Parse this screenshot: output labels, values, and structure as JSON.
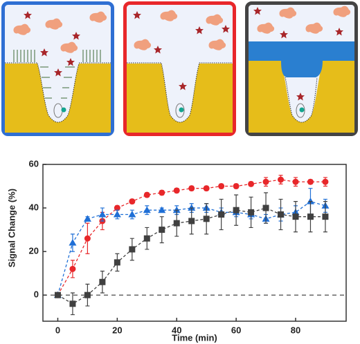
{
  "chart_data": {
    "type": "line",
    "x_label": "Time (min)",
    "y_label": "Signal Change (%)",
    "x": [
      0,
      5,
      10,
      15,
      20,
      25,
      30,
      35,
      40,
      45,
      50,
      55,
      60,
      65,
      70,
      75,
      80,
      85,
      90
    ],
    "series": [
      {
        "color": "#e8272a",
        "marker": "circle",
        "values": [
          0,
          12,
          26,
          34,
          40,
          43,
          46,
          47,
          48,
          49,
          49,
          50,
          50,
          51,
          52,
          53,
          52,
          52,
          52
        ],
        "errors": [
          1,
          4,
          7,
          4,
          1,
          1,
          1,
          1,
          1,
          1,
          1,
          1,
          1,
          1,
          2,
          2,
          2,
          1,
          2
        ]
      },
      {
        "color": "#1f6fd6",
        "marker": "triangle",
        "values": [
          0,
          24,
          35,
          37,
          37,
          37,
          39,
          39,
          39,
          40,
          40,
          38,
          38,
          37,
          35,
          37,
          38,
          43,
          41
        ],
        "errors": [
          1,
          4,
          1,
          3,
          2,
          2,
          2,
          1,
          2,
          2,
          2,
          2,
          2,
          2,
          2,
          3,
          3,
          6,
          3
        ]
      },
      {
        "color": "#404040",
        "marker": "square",
        "values": [
          0,
          -4,
          0,
          6,
          15,
          21,
          26,
          30,
          33,
          34,
          35,
          37,
          39,
          38,
          40,
          37,
          36,
          36,
          36
        ],
        "errors": [
          1,
          5,
          5,
          5,
          4,
          5,
          5,
          6,
          6,
          6,
          7,
          7,
          7,
          7,
          7,
          7,
          7,
          7,
          7
        ]
      }
    ],
    "xlim": [
      -5,
      97
    ],
    "ylim": [
      -12,
      60
    ],
    "xticks": [
      0,
      20,
      40,
      60,
      80
    ],
    "yticks": [
      0,
      20,
      40,
      60
    ],
    "reference_line": 0
  }
}
